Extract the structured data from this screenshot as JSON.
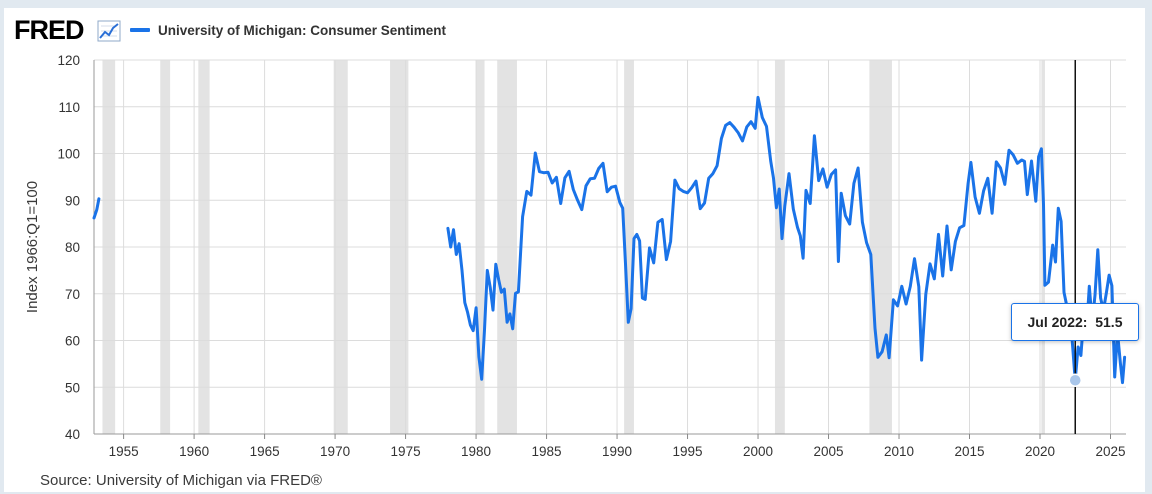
{
  "header": {
    "logo_text": "FRED",
    "logo_icon": "line-chart-icon",
    "series_label": "University of Michigan: Consumer Sentiment"
  },
  "source_text": "Source: University of Michigan via FRED®",
  "tooltip": {
    "date": "Jul 2022:",
    "value": "51.5"
  },
  "colors": {
    "line": "#1a73e8",
    "recession": "#e3e3e3",
    "grid": "#dcdcdc",
    "frame": "#e1e9f0"
  },
  "chart_data": {
    "type": "line",
    "title": "",
    "ylabel": "Index 1966:Q1=100",
    "xlabel": "",
    "ylim": [
      40,
      120
    ],
    "xlim": [
      1952.9,
      2026.1
    ],
    "grid": true,
    "legend": "top-left",
    "yticks": [
      40,
      50,
      60,
      70,
      80,
      90,
      100,
      110,
      120
    ],
    "xticks": [
      1955,
      1960,
      1965,
      1970,
      1975,
      1980,
      1985,
      1990,
      1995,
      2000,
      2005,
      2010,
      2015,
      2020,
      2025
    ],
    "recessions": [
      [
        1953.5,
        1954.4
      ],
      [
        1957.6,
        1958.3
      ],
      [
        1960.3,
        1961.1
      ],
      [
        1969.9,
        1970.9
      ],
      [
        1973.9,
        1975.2
      ],
      [
        1980.0,
        1980.6
      ],
      [
        1981.5,
        1982.9
      ],
      [
        1990.5,
        1991.2
      ],
      [
        2001.2,
        2001.9
      ],
      [
        2007.9,
        2009.5
      ],
      [
        2020.1,
        2020.35
      ]
    ],
    "highlight": {
      "x": 2022.5,
      "label": "Jul 2022",
      "value": 51.5
    },
    "series": [
      {
        "name": "University of Michigan: Consumer Sentiment",
        "segments": [
          [
            [
              1952.9,
              86.2
            ],
            [
              1953.1,
              88.0
            ],
            [
              1953.25,
              90.3
            ]
          ],
          [
            [
              1978.0,
              84.0
            ],
            [
              1978.2,
              80.0
            ],
            [
              1978.4,
              83.7
            ],
            [
              1978.6,
              78.4
            ],
            [
              1978.8,
              80.7
            ],
            [
              1979.0,
              75.0
            ],
            [
              1979.2,
              68.1
            ],
            [
              1979.4,
              66.0
            ],
            [
              1979.6,
              63.3
            ],
            [
              1979.8,
              62.1
            ],
            [
              1980.0,
              67.0
            ],
            [
              1980.2,
              56.5
            ],
            [
              1980.4,
              51.7
            ],
            [
              1980.6,
              62.3
            ],
            [
              1980.8,
              75.0
            ],
            [
              1981.0,
              71.4
            ],
            [
              1981.2,
              66.5
            ],
            [
              1981.4,
              76.3
            ],
            [
              1981.6,
              73.1
            ],
            [
              1981.8,
              70.3
            ],
            [
              1982.0,
              71.0
            ],
            [
              1982.2,
              63.9
            ],
            [
              1982.4,
              65.7
            ],
            [
              1982.6,
              62.5
            ],
            [
              1982.8,
              70.1
            ],
            [
              1983.0,
              70.4
            ],
            [
              1983.3,
              86.5
            ],
            [
              1983.6,
              91.9
            ],
            [
              1983.9,
              91.1
            ],
            [
              1984.2,
              100.1
            ],
            [
              1984.5,
              96.1
            ],
            [
              1984.8,
              95.9
            ],
            [
              1985.1,
              96.0
            ],
            [
              1985.4,
              93.7
            ],
            [
              1985.7,
              94.9
            ],
            [
              1986.0,
              89.3
            ],
            [
              1986.3,
              94.8
            ],
            [
              1986.6,
              96.2
            ],
            [
              1986.9,
              92.3
            ],
            [
              1987.2,
              90.0
            ],
            [
              1987.5,
              88.0
            ],
            [
              1987.8,
              93.1
            ],
            [
              1988.1,
              94.6
            ],
            [
              1988.4,
              94.7
            ],
            [
              1988.7,
              96.8
            ],
            [
              1989.0,
              97.9
            ],
            [
              1989.3,
              91.8
            ],
            [
              1989.6,
              92.8
            ],
            [
              1989.9,
              93.0
            ],
            [
              1990.2,
              89.5
            ],
            [
              1990.4,
              88.3
            ],
            [
              1990.6,
              76.4
            ],
            [
              1990.8,
              63.9
            ],
            [
              1991.0,
              66.8
            ],
            [
              1991.2,
              81.8
            ],
            [
              1991.4,
              82.7
            ],
            [
              1991.6,
              81.3
            ],
            [
              1991.8,
              69.1
            ],
            [
              1992.0,
              68.8
            ],
            [
              1992.3,
              79.8
            ],
            [
              1992.6,
              76.6
            ],
            [
              1992.9,
              85.3
            ],
            [
              1993.2,
              85.9
            ],
            [
              1993.5,
              77.3
            ],
            [
              1993.8,
              81.2
            ],
            [
              1994.1,
              94.3
            ],
            [
              1994.4,
              92.5
            ],
            [
              1994.7,
              91.9
            ],
            [
              1995.0,
              91.6
            ],
            [
              1995.3,
              92.7
            ],
            [
              1995.6,
              94.1
            ],
            [
              1995.9,
              88.2
            ],
            [
              1996.2,
              89.4
            ],
            [
              1996.5,
              94.7
            ],
            [
              1996.8,
              95.7
            ],
            [
              1997.1,
              97.4
            ],
            [
              1997.4,
              103.2
            ],
            [
              1997.7,
              106.0
            ],
            [
              1998.0,
              106.6
            ],
            [
              1998.3,
              105.6
            ],
            [
              1998.6,
              104.4
            ],
            [
              1998.9,
              102.7
            ],
            [
              1999.2,
              105.7
            ],
            [
              1999.5,
              106.8
            ],
            [
              1999.8,
              105.4
            ],
            [
              2000.0,
              112.0
            ],
            [
              2000.3,
              107.7
            ],
            [
              2000.6,
              105.8
            ],
            [
              2000.9,
              98.4
            ],
            [
              2001.1,
              94.7
            ],
            [
              2001.3,
              88.4
            ],
            [
              2001.5,
              92.4
            ],
            [
              2001.7,
              81.8
            ],
            [
              2001.9,
              88.8
            ],
            [
              2002.2,
              95.7
            ],
            [
              2002.5,
              88.1
            ],
            [
              2002.8,
              84.2
            ],
            [
              2003.0,
              82.4
            ],
            [
              2003.2,
              77.6
            ],
            [
              2003.4,
              92.1
            ],
            [
              2003.7,
              89.3
            ],
            [
              2004.0,
              103.8
            ],
            [
              2004.3,
              94.2
            ],
            [
              2004.6,
              96.7
            ],
            [
              2004.9,
              92.8
            ],
            [
              2005.2,
              95.5
            ],
            [
              2005.5,
              96.5
            ],
            [
              2005.7,
              76.9
            ],
            [
              2005.9,
              91.5
            ],
            [
              2006.2,
              86.7
            ],
            [
              2006.5,
              84.9
            ],
            [
              2006.8,
              93.6
            ],
            [
              2007.1,
              96.9
            ],
            [
              2007.4,
              85.3
            ],
            [
              2007.7,
              80.9
            ],
            [
              2008.0,
              78.4
            ],
            [
              2008.3,
              62.6
            ],
            [
              2008.5,
              56.4
            ],
            [
              2008.8,
              57.6
            ],
            [
              2009.1,
              61.2
            ],
            [
              2009.3,
              56.3
            ],
            [
              2009.6,
              68.7
            ],
            [
              2009.9,
              67.4
            ],
            [
              2010.2,
              71.6
            ],
            [
              2010.5,
              67.8
            ],
            [
              2010.8,
              71.6
            ],
            [
              2011.1,
              77.5
            ],
            [
              2011.4,
              71.5
            ],
            [
              2011.6,
              55.8
            ],
            [
              2011.9,
              69.9
            ],
            [
              2012.2,
              76.4
            ],
            [
              2012.5,
              73.2
            ],
            [
              2012.8,
              82.7
            ],
            [
              2013.1,
              73.8
            ],
            [
              2013.4,
              84.5
            ],
            [
              2013.7,
              75.1
            ],
            [
              2014.0,
              81.2
            ],
            [
              2014.3,
              84.1
            ],
            [
              2014.6,
              84.6
            ],
            [
              2014.9,
              93.6
            ],
            [
              2015.1,
              98.1
            ],
            [
              2015.4,
              90.7
            ],
            [
              2015.7,
              87.2
            ],
            [
              2016.0,
              92.0
            ],
            [
              2016.3,
              94.7
            ],
            [
              2016.6,
              87.2
            ],
            [
              2016.9,
              98.2
            ],
            [
              2017.2,
              96.9
            ],
            [
              2017.5,
              93.4
            ],
            [
              2017.8,
              100.7
            ],
            [
              2018.1,
              99.7
            ],
            [
              2018.4,
              97.9
            ],
            [
              2018.7,
              98.6
            ],
            [
              2018.9,
              98.3
            ],
            [
              2019.1,
              91.2
            ],
            [
              2019.4,
              98.4
            ],
            [
              2019.7,
              89.8
            ],
            [
              2019.9,
              99.3
            ],
            [
              2020.1,
              101.0
            ],
            [
              2020.25,
              89.1
            ],
            [
              2020.35,
              71.8
            ],
            [
              2020.6,
              72.5
            ],
            [
              2020.9,
              80.4
            ],
            [
              2021.1,
              76.8
            ],
            [
              2021.3,
              88.3
            ],
            [
              2021.5,
              85.5
            ],
            [
              2021.7,
              70.3
            ],
            [
              2021.9,
              67.4
            ],
            [
              2022.1,
              67.2
            ],
            [
              2022.3,
              59.4
            ],
            [
              2022.5,
              51.5
            ],
            [
              2022.7,
              58.6
            ],
            [
              2022.9,
              56.8
            ],
            [
              2023.1,
              64.9
            ],
            [
              2023.3,
              62.0
            ],
            [
              2023.5,
              71.6
            ],
            [
              2023.7,
              63.8
            ],
            [
              2023.9,
              69.7
            ],
            [
              2024.1,
              79.4
            ],
            [
              2024.3,
              69.1
            ],
            [
              2024.5,
              66.4
            ],
            [
              2024.7,
              70.1
            ],
            [
              2024.9,
              74.0
            ],
            [
              2025.1,
              71.7
            ],
            [
              2025.3,
              52.2
            ],
            [
              2025.5,
              61.7
            ],
            [
              2025.7,
              55.1
            ],
            [
              2025.85,
              51.0
            ],
            [
              2026.0,
              56.4
            ]
          ]
        ]
      }
    ]
  }
}
